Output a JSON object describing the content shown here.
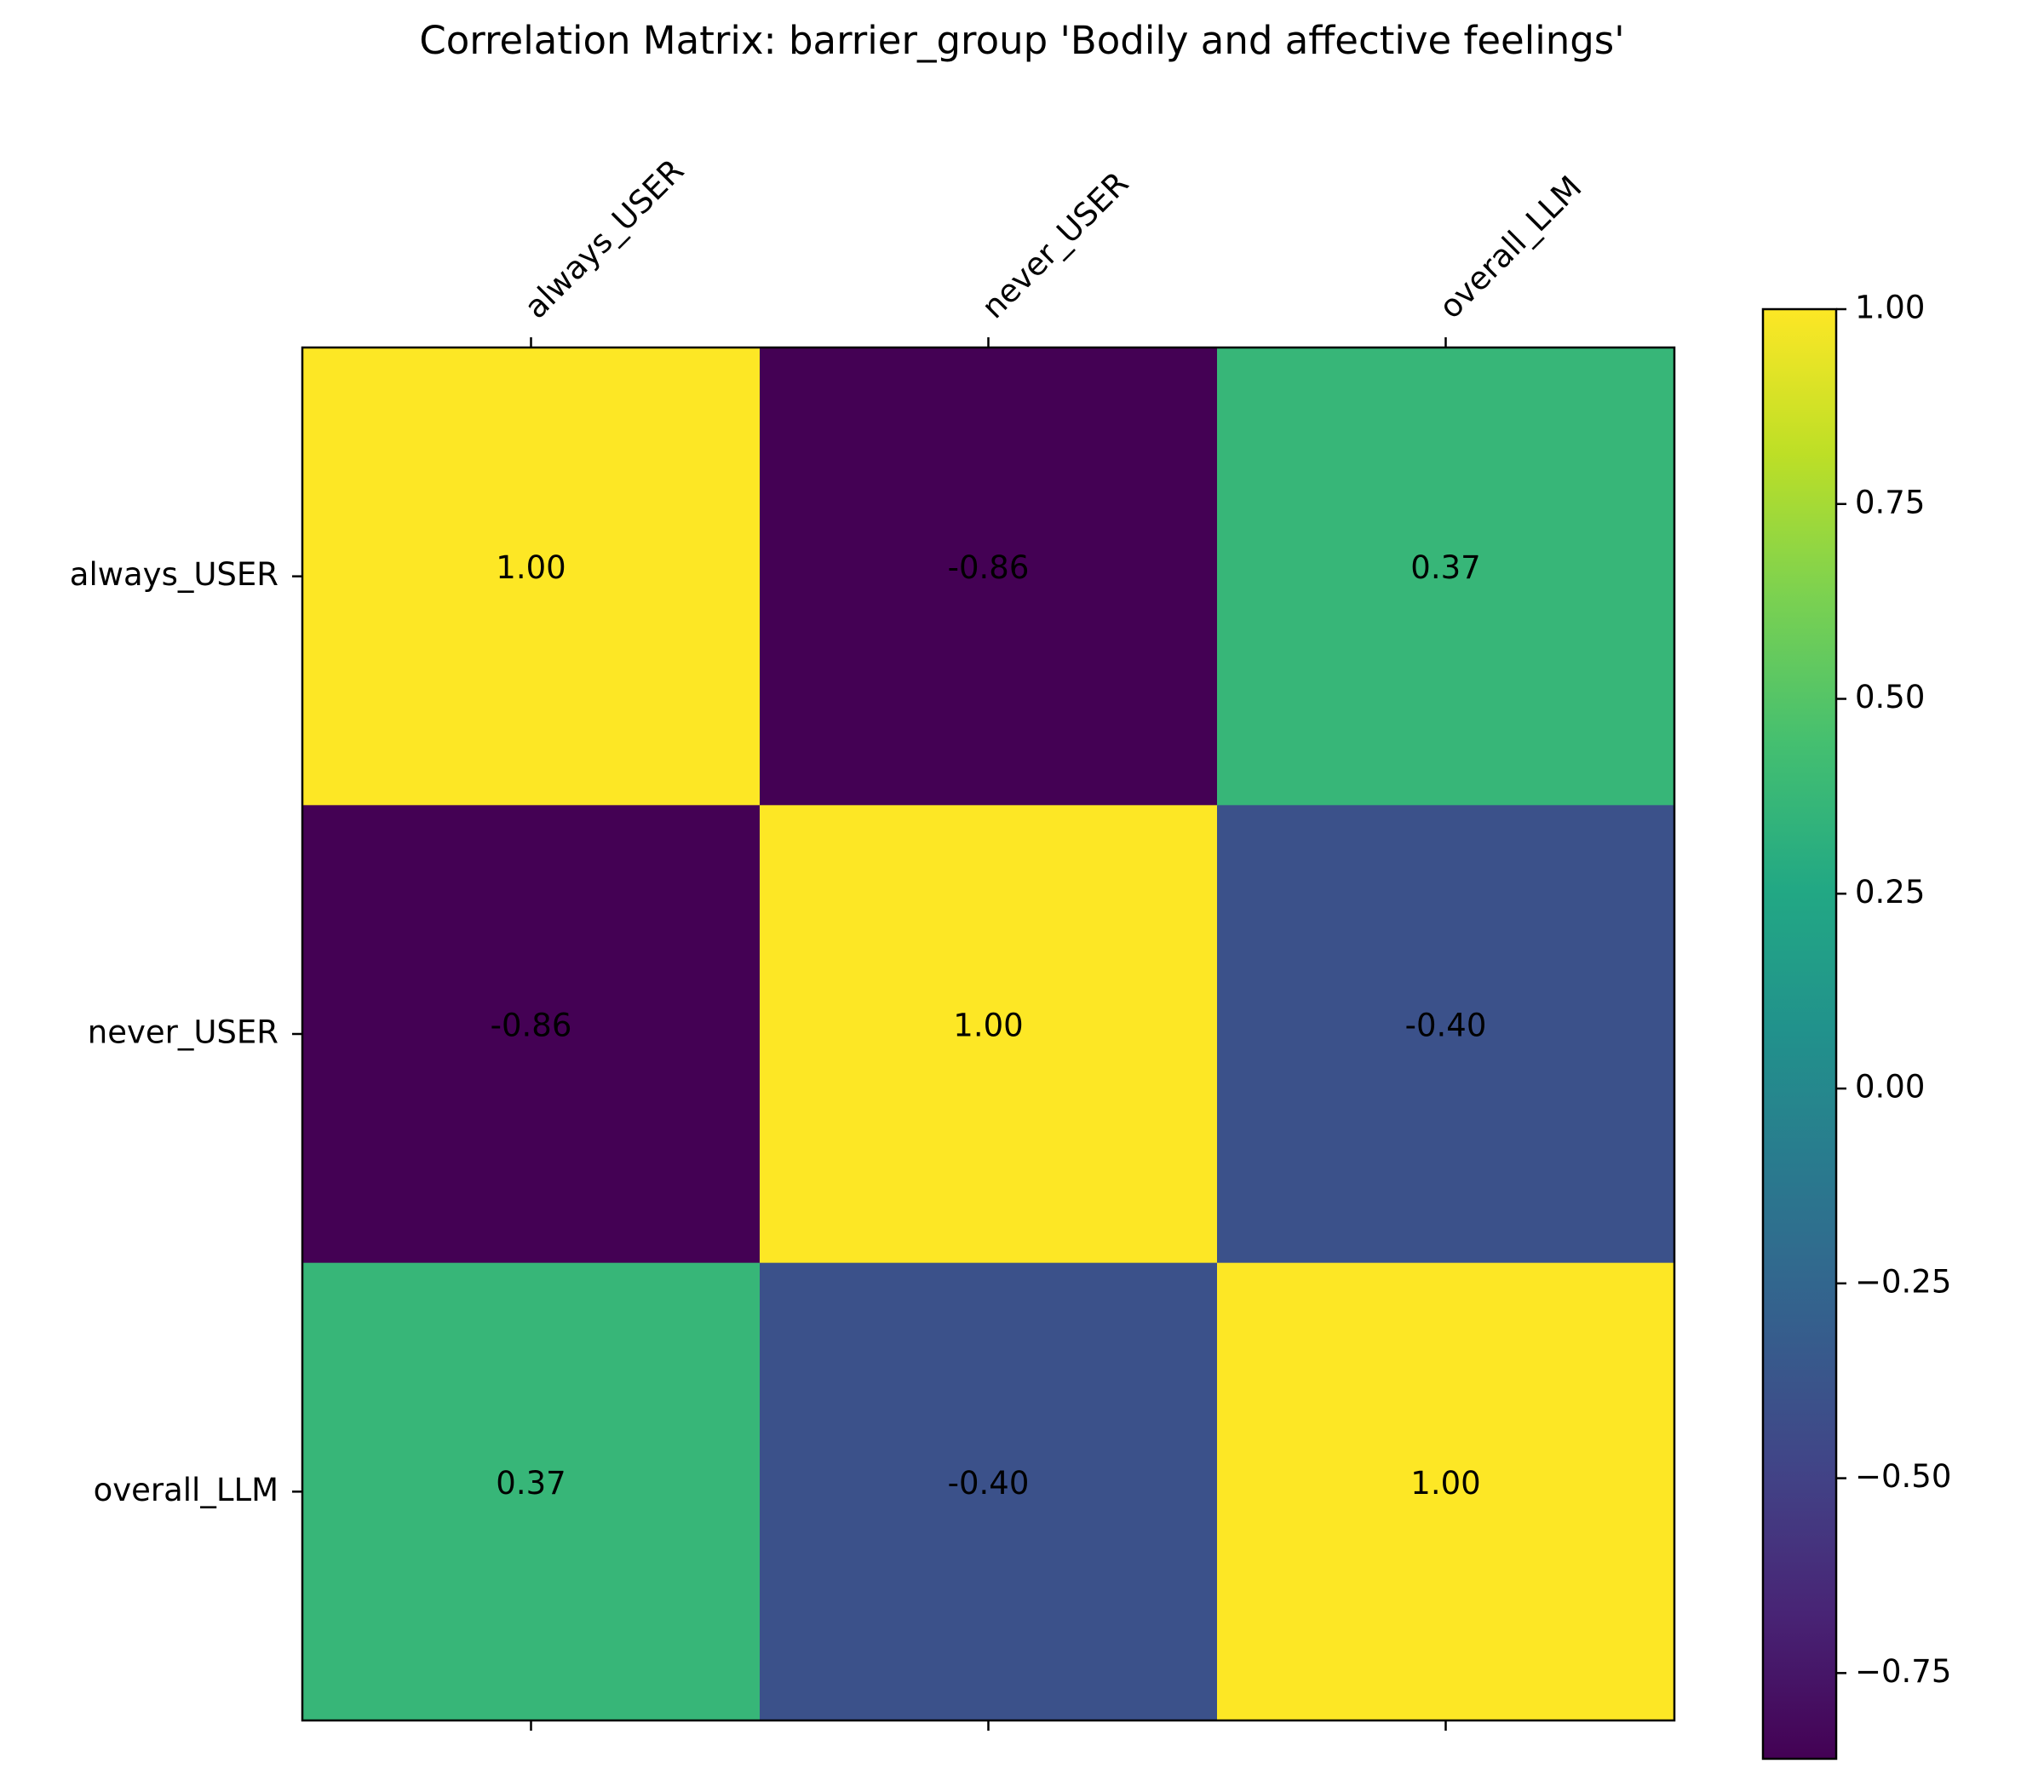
{
  "chart_data": {
    "type": "heatmap",
    "title": "Correlation Matrix: barrier_group 'Bodily and affective feelings'",
    "x_labels": [
      "always_USER",
      "never_USER",
      "overall_LLM"
    ],
    "y_labels": [
      "always_USER",
      "never_USER",
      "overall_LLM"
    ],
    "values": [
      [
        1.0,
        -0.86,
        0.37
      ],
      [
        -0.86,
        1.0,
        -0.4
      ],
      [
        0.37,
        -0.4,
        1.0
      ]
    ],
    "cell_labels": [
      [
        "1.00",
        "-0.86",
        "0.37"
      ],
      [
        "-0.86",
        "1.00",
        "-0.40"
      ],
      [
        "0.37",
        "-0.40",
        "1.00"
      ]
    ],
    "colormap": "viridis",
    "color_range": [
      -0.86,
      1.0
    ],
    "colorbar_ticks": [
      1.0,
      0.75,
      0.5,
      0.25,
      0.0,
      -0.25,
      -0.5,
      -0.75
    ],
    "colorbar_tick_labels": [
      "1.00",
      "0.75",
      "0.50",
      "0.25",
      "0.00",
      "−0.25",
      "−0.50",
      "−0.75"
    ],
    "x_tick_position": "top",
    "grid": false,
    "legend": "colorbar-right"
  }
}
